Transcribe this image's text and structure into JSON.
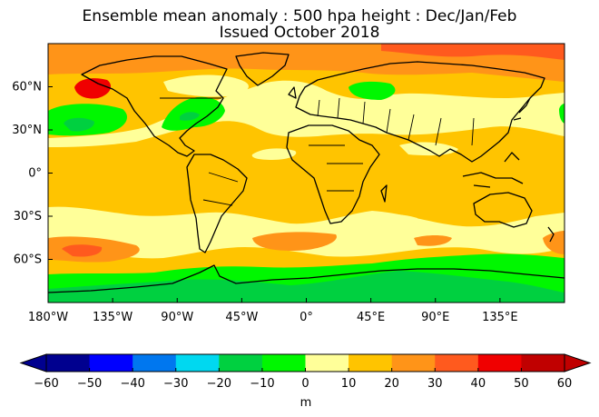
{
  "title": {
    "line1": "Ensemble mean anomaly : 500 hpa height : Dec/Jan/Feb",
    "line2": "Issued October 2018"
  },
  "map": {
    "projection": "equirectangular",
    "lon_range": [
      -180,
      180
    ],
    "lat_range": [
      -90,
      90
    ],
    "lon_ticks": [
      {
        "value": -180,
        "label": "180°W"
      },
      {
        "value": -135,
        "label": "135°W"
      },
      {
        "value": -90,
        "label": "90°W"
      },
      {
        "value": -45,
        "label": "45°W"
      },
      {
        "value": 0,
        "label": "0°"
      },
      {
        "value": 45,
        "label": "45°E"
      },
      {
        "value": 90,
        "label": "90°E"
      },
      {
        "value": 135,
        "label": "135°E"
      }
    ],
    "lat_ticks": [
      {
        "value": 60,
        "label": "60°N"
      },
      {
        "value": 30,
        "label": "30°N"
      },
      {
        "value": 0,
        "label": "0°"
      },
      {
        "value": -30,
        "label": "30°S"
      },
      {
        "value": -60,
        "label": "60°S"
      }
    ],
    "background_level": "10 to 20 m"
  },
  "colorbar": {
    "ticks": [
      "−60",
      "−50",
      "−40",
      "−30",
      "−20",
      "−10",
      "0",
      "10",
      "20",
      "30",
      "40",
      "50",
      "60"
    ],
    "colors": [
      "#00008f",
      "#0000ff",
      "#0077ef",
      "#00d8f0",
      "#00d040",
      "#00f700",
      "#ffff99",
      "#ffc400",
      "#ff9418",
      "#ff5a1e",
      "#f00000",
      "#c00000"
    ],
    "under_color": "#00008f",
    "over_color": "#c00000",
    "unit": "m"
  }
}
